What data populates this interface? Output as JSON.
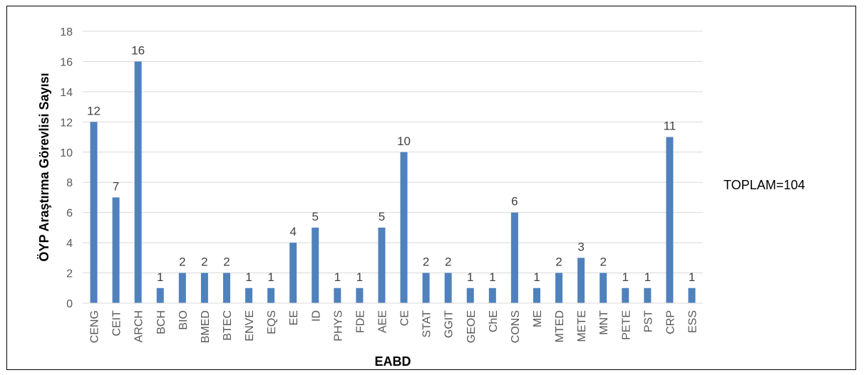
{
  "chart_data": {
    "type": "bar",
    "title": "",
    "xlabel": "EABD",
    "ylabel": "ÖYP Araştırma Görevlisi Sayısı",
    "ylim": [
      0,
      18
    ],
    "yticks": [
      0,
      2,
      4,
      6,
      8,
      10,
      12,
      14,
      16,
      18
    ],
    "grid": true,
    "legend": "none",
    "bar_color": "#4f81bd",
    "categories": [
      "CENG",
      "CEIT",
      "ARCH",
      "BCH",
      "BIO",
      "BMED",
      "BTEC",
      "ENVE",
      "EQS",
      "EE",
      "ID",
      "PHYS",
      "FDE",
      "AEE",
      "CE",
      "STAT",
      "GGIT",
      "GEOE",
      "ChE",
      "CONS",
      "ME",
      "MTED",
      "METE",
      "MNT",
      "PETE",
      "PST",
      "CRP",
      "ESS"
    ],
    "values": [
      12,
      7,
      16,
      1,
      2,
      2,
      2,
      1,
      1,
      4,
      5,
      1,
      1,
      5,
      10,
      2,
      2,
      1,
      1,
      6,
      1,
      2,
      3,
      2,
      1,
      1,
      11,
      1
    ],
    "annotation": "TOPLAM=104"
  }
}
